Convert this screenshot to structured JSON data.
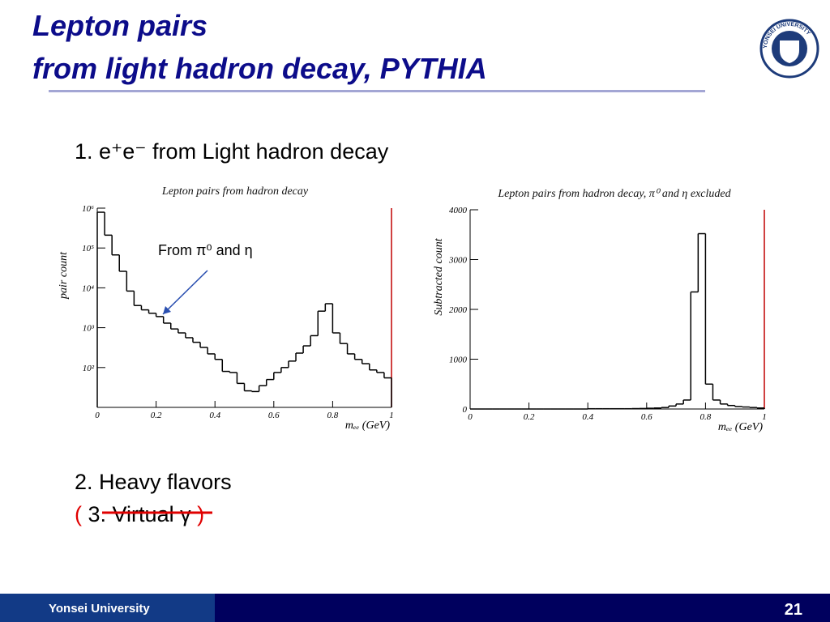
{
  "slide_title": [
    "Lepton pairs",
    "from light hadron decay, PYTHIA"
  ],
  "logo_text": "YONSEI UNIVERSITY",
  "items": {
    "first": "1. e⁺e⁻ from Light hadron decay",
    "second": "2. Heavy flavors",
    "third": {
      "open": "(",
      "text": "3. Virtual γ",
      "close": ")"
    }
  },
  "footer": {
    "org": "Yonsei University",
    "page": "21"
  },
  "chart_data": [
    {
      "type": "histogram",
      "title": "Lepton pairs from hadron decay",
      "x_label": "mₑₑ (GeV)",
      "y_label": "pair count",
      "annotation": "From π⁰ and η",
      "log_y": true,
      "bins": [
        0,
        0.025,
        0.05,
        0.075,
        0.1,
        0.125,
        0.15,
        0.175,
        0.2,
        0.225,
        0.25,
        0.275,
        0.3,
        0.325,
        0.35,
        0.375,
        0.4,
        0.425,
        0.45,
        0.475,
        0.5,
        0.525,
        0.55,
        0.575,
        0.6,
        0.625,
        0.65,
        0.675,
        0.7,
        0.725,
        0.75,
        0.775,
        0.8,
        0.825,
        0.85,
        0.875,
        0.9,
        0.925,
        0.95,
        0.975,
        1
      ],
      "values": [
        790000,
        210000,
        67000,
        26000,
        8300,
        3600,
        2800,
        2300,
        1900,
        1300,
        930,
        740,
        560,
        430,
        320,
        220,
        160,
        80,
        75,
        40,
        26,
        25,
        35,
        50,
        75,
        100,
        145,
        230,
        350,
        630,
        2600,
        4000,
        740,
        400,
        220,
        160,
        125,
        87,
        75,
        55
      ],
      "color": "#000000",
      "xlim": [
        0,
        1
      ],
      "xticks": [
        0,
        0.2,
        0.4,
        0.6,
        0.8,
        1
      ],
      "ylim": [
        10,
        1000000
      ],
      "yticks": [
        {
          "value": 100,
          "label": "10²"
        },
        {
          "value": 1000,
          "label": "10³"
        },
        {
          "value": 10000,
          "label": "10⁴"
        },
        {
          "value": 100000,
          "label": "10⁵"
        },
        {
          "value": 1000000,
          "label": "10⁶"
        }
      ]
    },
    {
      "type": "histogram",
      "title": "Lepton pairs from hadron decay, π⁰ and η excluded",
      "x_label": "mₑₑ (GeV)",
      "y_label": "Subtracted count",
      "log_y": false,
      "bins": [
        0,
        0.025,
        0.05,
        0.075,
        0.1,
        0.125,
        0.15,
        0.175,
        0.2,
        0.225,
        0.25,
        0.275,
        0.3,
        0.325,
        0.35,
        0.375,
        0.4,
        0.425,
        0.45,
        0.475,
        0.5,
        0.525,
        0.55,
        0.575,
        0.6,
        0.625,
        0.65,
        0.675,
        0.7,
        0.725,
        0.75,
        0.775,
        0.8,
        0.825,
        0.85,
        0.875,
        0.9,
        0.925,
        0.95,
        0.975,
        1
      ],
      "values": [
        0,
        0,
        0,
        0,
        0,
        0,
        0,
        0,
        0,
        0,
        0,
        0,
        0,
        0,
        0,
        0,
        5,
        5,
        5,
        5,
        5,
        5,
        8,
        10,
        15,
        20,
        30,
        60,
        100,
        180,
        2350,
        3520,
        500,
        180,
        100,
        70,
        50,
        40,
        30,
        20
      ],
      "color": "#000000",
      "xlim": [
        0,
        1
      ],
      "xticks": [
        0,
        0.2,
        0.4,
        0.6,
        0.8,
        1
      ],
      "ylim": [
        0,
        4000
      ],
      "yticks": [
        0,
        1000,
        2000,
        3000,
        4000
      ]
    }
  ]
}
